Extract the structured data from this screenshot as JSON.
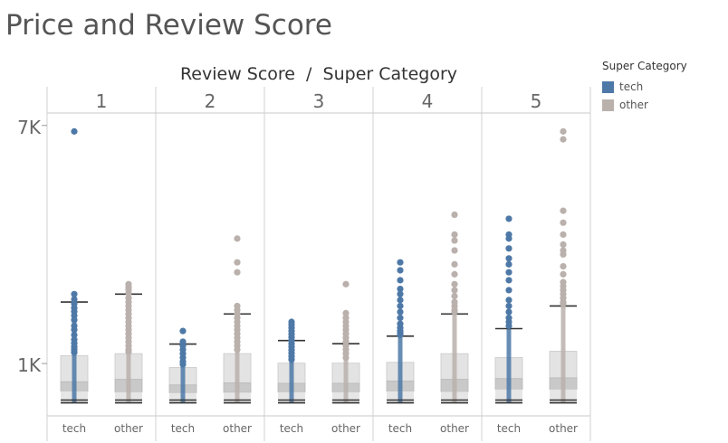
{
  "title": "Price and Review Score",
  "legend": {
    "title": "Super Category",
    "items": [
      {
        "label": "tech",
        "color": "#4e79a7"
      },
      {
        "label": "other",
        "color": "#bab0ac"
      }
    ]
  },
  "chart_data": {
    "type": "box",
    "column_header": "Review Score  /  Super Category",
    "panels": [
      "1",
      "2",
      "3",
      "4",
      "5"
    ],
    "categories": [
      "tech",
      "other"
    ],
    "y_ticks": [
      {
        "label": "1K",
        "value": 1000
      },
      {
        "label": "7K",
        "value": 7000
      }
    ],
    "ylim": [
      0,
      7200
    ],
    "grid": false,
    "legend_position": "right",
    "boxes": [
      {
        "panel": "1",
        "category": "tech",
        "color": "#4e79a7",
        "min": 10,
        "q1": 300,
        "median": 540,
        "q3": 1200,
        "max": 2550,
        "outliers": [
          6850,
          2750,
          2620,
          2510,
          2400,
          2310,
          2210,
          2100,
          1950,
          1850,
          1720,
          1600,
          1510,
          1420,
          1350,
          1280
        ]
      },
      {
        "panel": "1",
        "category": "other",
        "color": "#bab0ac",
        "min": 10,
        "q1": 280,
        "median": 600,
        "q3": 1250,
        "max": 2750,
        "outliers": [
          3000,
          2920,
          2860,
          2780,
          2650,
          2550,
          2450,
          2350,
          2250,
          2150,
          2050,
          1950,
          1850,
          1750,
          1650,
          1550,
          1450,
          1350,
          1300
        ]
      },
      {
        "panel": "2",
        "category": "tech",
        "color": "#4e79a7",
        "min": 10,
        "q1": 260,
        "median": 460,
        "q3": 900,
        "max": 1490,
        "outliers": [
          1820,
          1550,
          1450,
          1350,
          1250,
          1150,
          1050,
          980
        ]
      },
      {
        "panel": "2",
        "category": "other",
        "color": "#bab0ac",
        "min": 10,
        "q1": 270,
        "median": 510,
        "q3": 1250,
        "max": 2250,
        "outliers": [
          4150,
          3550,
          3300,
          2450,
          2350,
          2250,
          2150,
          2050,
          1950,
          1850,
          1750,
          1650,
          1550,
          1450,
          1350
        ]
      },
      {
        "panel": "3",
        "category": "tech",
        "color": "#4e79a7",
        "min": 10,
        "q1": 280,
        "median": 500,
        "q3": 1010,
        "max": 1580,
        "outliers": [
          2050,
          1980,
          1900,
          1820,
          1740,
          1660,
          1580,
          1500,
          1420,
          1340,
          1260,
          1180,
          1100
        ]
      },
      {
        "panel": "3",
        "category": "other",
        "color": "#bab0ac",
        "min": 10,
        "q1": 280,
        "median": 500,
        "q3": 1010,
        "max": 1500,
        "outliers": [
          3000,
          2270,
          2150,
          2050,
          1950,
          1850,
          1750,
          1650,
          1550,
          1450,
          1350,
          1250,
          1150
        ]
      },
      {
        "panel": "4",
        "category": "tech",
        "color": "#4e79a7",
        "min": 10,
        "q1": 300,
        "median": 560,
        "q3": 1030,
        "max": 1690,
        "outliers": [
          3550,
          3350,
          3100,
          2880,
          2750,
          2600,
          2450,
          2300,
          2150,
          2000,
          1900,
          1820,
          1760,
          1720
        ]
      },
      {
        "panel": "4",
        "category": "other",
        "color": "#bab0ac",
        "min": 10,
        "q1": 290,
        "median": 600,
        "q3": 1250,
        "max": 2250,
        "outliers": [
          4750,
          4250,
          4100,
          3850,
          3500,
          3250,
          3000,
          2850,
          2700,
          2550,
          2450,
          2350,
          2300
        ]
      },
      {
        "panel": "5",
        "category": "tech",
        "color": "#4e79a7",
        "min": 10,
        "q1": 350,
        "median": 620,
        "q3": 1150,
        "max": 1880,
        "outliers": [
          4650,
          4250,
          4150,
          3900,
          3650,
          3500,
          3300,
          3100,
          2850,
          2600,
          2450,
          2300,
          2150,
          2050,
          1950
        ]
      },
      {
        "panel": "5",
        "category": "other",
        "color": "#bab0ac",
        "min": 10,
        "q1": 350,
        "median": 640,
        "q3": 1310,
        "max": 2450,
        "outliers": [
          6850,
          6650,
          4850,
          4550,
          4250,
          4000,
          3850,
          3750,
          3450,
          3250,
          3050,
          2950,
          2850,
          2750,
          2650,
          2550,
          2500
        ]
      }
    ]
  }
}
